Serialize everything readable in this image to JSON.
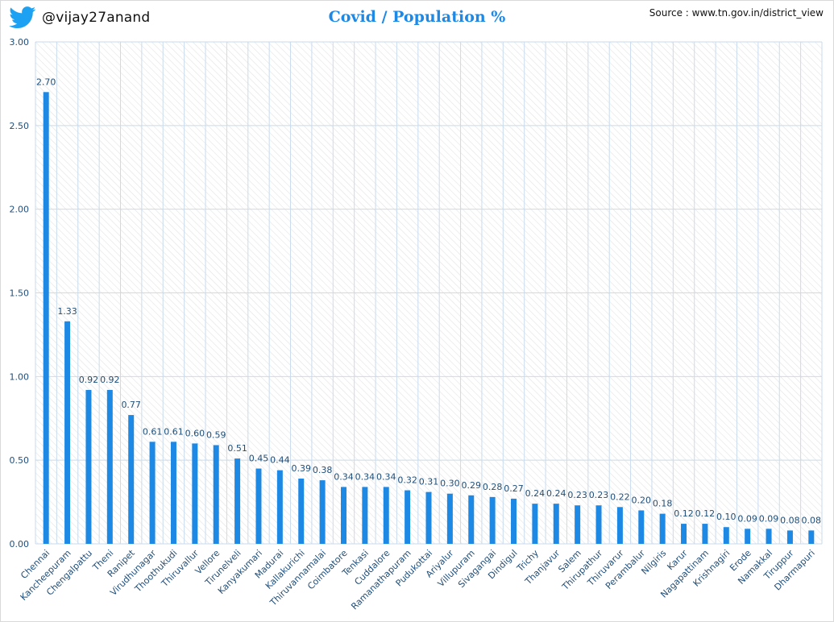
{
  "header": {
    "handle": "@vijay27anand",
    "handle_icon": "twitter-bird-icon",
    "title": "Covid / Population %",
    "source": "Source : www.tn.gov.in/district_view"
  },
  "colors": {
    "bar": "#1e88e5",
    "label": "#1f4e79",
    "grid": "#c9dbee",
    "hatch": "#e3e3e3",
    "axis_text": "#1f4e79",
    "title": "#1e88e5",
    "bird": "#1da1f2"
  },
  "chart_data": {
    "type": "bar",
    "title": "Covid / Population %",
    "xlabel": "",
    "ylabel": "",
    "ylim": [
      0,
      3.0
    ],
    "yticks": [
      "0.00",
      "0.50",
      "1.00",
      "1.50",
      "2.00",
      "2.50",
      "3.00"
    ],
    "grid": true,
    "legend": "none",
    "categories": [
      "Chennai",
      "Kancheepuram",
      "Chengalpattu",
      "Theni",
      "Ranipet",
      "Virudhunagar",
      "Thoothukudi",
      "Thiruvallur",
      "Vellore",
      "Tirunelveli",
      "Kanyakumari",
      "Madurai",
      "Kallakurichi",
      "Thiruvannamalai",
      "Coimbatore",
      "Tenkasi",
      "Cuddalore",
      "Ramanathapuram",
      "Pudukottai",
      "Ariyalur",
      "Villupuram",
      "Sivagangai",
      "Dindigul",
      "Trichy",
      "Thanjavur",
      "Salem",
      "Thirupathur",
      "Thiruvarur",
      "Perambalur",
      "Nilgiris",
      "Karur",
      "Nagapattinam",
      "Krishnagiri",
      "Erode",
      "Namakkal",
      "Tiruppur",
      "Dharmapuri"
    ],
    "values": [
      2.7,
      1.33,
      0.92,
      0.92,
      0.77,
      0.61,
      0.61,
      0.6,
      0.59,
      0.51,
      0.45,
      0.44,
      0.39,
      0.38,
      0.34,
      0.34,
      0.34,
      0.32,
      0.31,
      0.3,
      0.29,
      0.28,
      0.27,
      0.24,
      0.24,
      0.23,
      0.23,
      0.22,
      0.2,
      0.18,
      0.12,
      0.12,
      0.1,
      0.09,
      0.09,
      0.08,
      0.08
    ],
    "value_labels": [
      "2.70",
      "1.33",
      "0.92",
      "0.92",
      "0.77",
      "0.61",
      "0.61",
      "0.60",
      "0.59",
      "0.51",
      "0.45",
      "0.44",
      "0.39",
      "0.38",
      "0.34",
      "0.34",
      "0.34",
      "0.32",
      "0.31",
      "0.30",
      "0.29",
      "0.28",
      "0.27",
      "0.24",
      "0.24",
      "0.23",
      "0.23",
      "0.22",
      "0.20",
      "0.18",
      "0.12",
      "0.12",
      "0.10",
      "0.09",
      "0.09",
      "0.08",
      "0.08"
    ]
  }
}
